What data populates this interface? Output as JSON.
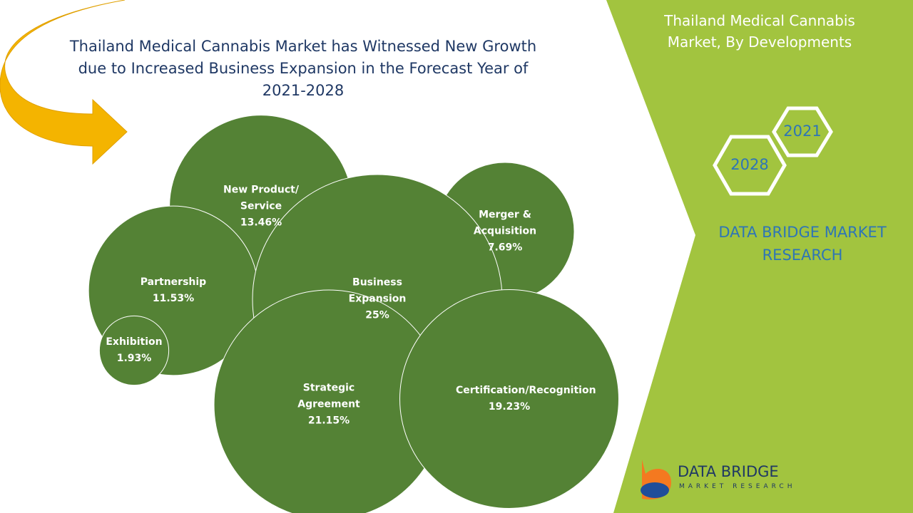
{
  "chart_data": {
    "type": "bubble",
    "title": "Thailand Medical Cannabis Market has Witnessed New Growth due to Increased Business Expansion in the Forecast Year of 2021-2028",
    "categories": [
      "New Product/ Service",
      "Merger & Acquisition",
      "Partnership",
      "Exhibition",
      "Business Expansion",
      "Strategic Agreement",
      "Certification/Recognition"
    ],
    "values": [
      13.46,
      7.69,
      11.53,
      1.93,
      25,
      21.15,
      19.23
    ],
    "value_labels": [
      "13.46%",
      "7.69%",
      "11.53%",
      "1.93%",
      "25%",
      "21.15%",
      "19.23%"
    ],
    "color": "#548235"
  },
  "sidebar": {
    "title": "Thailand Medical Cannabis Market, By Developments",
    "years": [
      "2021",
      "2028"
    ],
    "brand": "DATA BRIDGE MARKET RESEARCH"
  },
  "logo": {
    "name": "DATA BRIDGE",
    "tagline": "MARKET RESEARCH"
  }
}
